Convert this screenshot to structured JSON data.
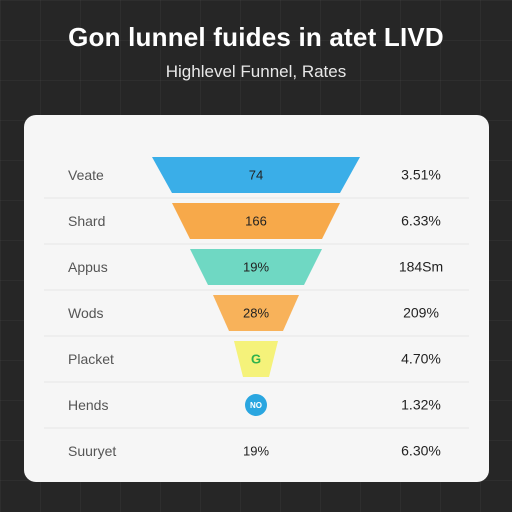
{
  "title": "Gon lunnel fuides in atet LIVD",
  "subtitle": "Highlevel Funnel, Rates",
  "colors": {
    "page_background": "#262626",
    "card_background": "#f6f6f6",
    "blue": "#3aaee8",
    "orange": "#f7a94a",
    "teal": "#6fd8c3",
    "orange_light": "#f8b25a",
    "yellow": "#f5f27a",
    "green_icon": "#2fb24c"
  },
  "chart_data": {
    "type": "funnel",
    "title": "Gon lunnel fuides in atet LIVD",
    "subtitle": "Highlevel Funnel, Rates",
    "stages": [
      {
        "label": "Veate",
        "value_label": "74",
        "rate": "3.51%",
        "color": "#3aaee8",
        "marker": "bar"
      },
      {
        "label": "Shard",
        "value_label": "166",
        "rate": "6.33%",
        "color": "#f7a94a",
        "marker": "bar"
      },
      {
        "label": "Appus",
        "value_label": "19%",
        "rate": "184Sm",
        "color": "#6fd8c3",
        "marker": "bar"
      },
      {
        "label": "Wods",
        "value_label": "28%",
        "rate": "209%",
        "color": "#f8b25a",
        "marker": "bar"
      },
      {
        "label": "Placket",
        "value_label": "G",
        "rate": "4.70%",
        "color": "#f5f27a",
        "marker": "bar",
        "icon_color": "#2fb24c"
      },
      {
        "label": "Hends",
        "value_label": "NO",
        "rate": "1.32%",
        "color": "#2aa6e0",
        "marker": "badge"
      },
      {
        "label": "Suuryet",
        "value_label": "19%",
        "rate": "6.30%",
        "color": "",
        "marker": "text"
      }
    ]
  }
}
